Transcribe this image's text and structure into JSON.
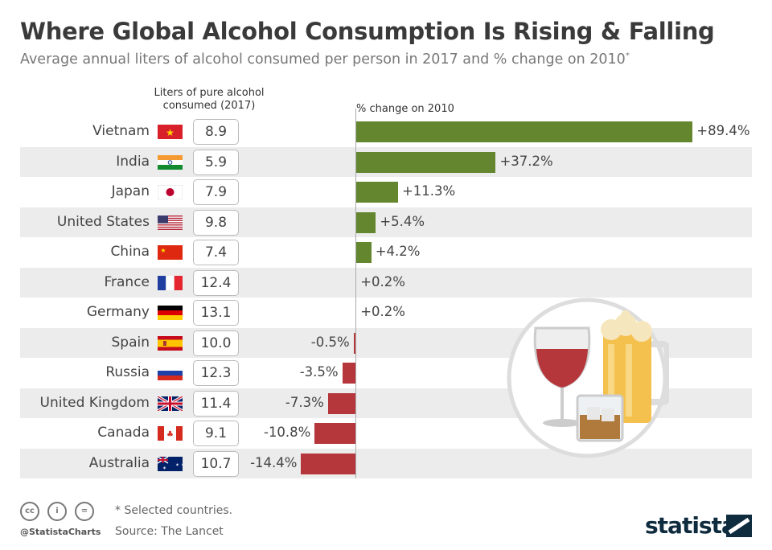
{
  "title": "Where Global Alcohol Consumption Is Rising & Falling",
  "subtitle": "Average annual liters of alcohol consumed per person in 2017 and % change on 2010",
  "subtitle_mark": "*",
  "chart_data": {
    "type": "bar",
    "column_header_liters": "Liters of pure alcohol consumed (2017)",
    "column_header_change": "% change on 2010",
    "categories": [
      "Vietnam",
      "India",
      "Japan",
      "United States",
      "China",
      "France",
      "Germany",
      "Spain",
      "Russia",
      "United Kingdom",
      "Canada",
      "Australia"
    ],
    "liters": [
      "8.9",
      "5.9",
      "7.9",
      "9.8",
      "7.4",
      "12.4",
      "13.1",
      "10.0",
      "12.3",
      "11.4",
      "9.1",
      "10.7"
    ],
    "values": [
      89.4,
      37.2,
      11.3,
      5.4,
      4.2,
      0.2,
      0.2,
      -0.5,
      -3.5,
      -7.3,
      -10.8,
      -14.4
    ],
    "labels": [
      "+89.4%",
      "+37.2%",
      "+11.3%",
      "+5.4%",
      "+4.2%",
      "+0.2%",
      "+0.2%",
      "-0.5%",
      "-3.5%",
      "-7.3%",
      "-10.8%",
      "-14.4%"
    ],
    "colors": {
      "positive": "#63862f",
      "negative": "#b5363b"
    }
  },
  "footer": {
    "note": "* Selected countries.",
    "source": "Source: The Lancet",
    "handle": "@StatistaCharts",
    "brand": "statista"
  }
}
